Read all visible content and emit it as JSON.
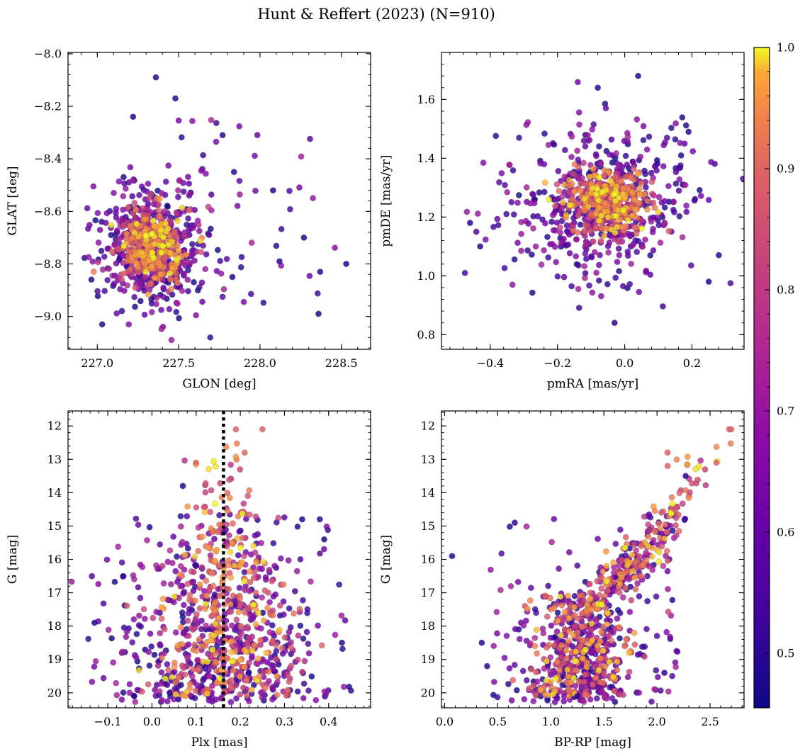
{
  "chart_data": {
    "type": "scatter",
    "title": "Hunt & Reffert (2023) (N=910)",
    "n_points": 910,
    "colorbar": {
      "colormap": "plasma",
      "range": [
        0.455,
        1.0
      ],
      "ticks": [
        0.5,
        0.6,
        0.7,
        0.8,
        0.9,
        1.0
      ],
      "tick_labels": [
        "0.5",
        "0.6",
        "0.7",
        "0.8",
        "0.9",
        "1.0"
      ]
    },
    "panels": [
      {
        "id": "glon-glat",
        "xlabel": "GLON [deg]",
        "ylabel": "GLAT [deg]",
        "xlim": [
          226.82,
          228.68
        ],
        "ylim": [
          -9.125,
          -7.995
        ],
        "y_inverted": false,
        "xticks": [
          227.0,
          227.5,
          228.0,
          228.5
        ],
        "xtick_labels": [
          "227.0",
          "227.5",
          "228.0",
          "228.5"
        ],
        "yticks": [
          -9.0,
          -8.8,
          -8.6,
          -8.4,
          -8.2,
          -8.0
        ],
        "ytick_labels": [
          "−9.0",
          "−8.8",
          "−8.6",
          "−8.4",
          "−8.2",
          "−8.0"
        ],
        "core": {
          "center": [
            227.33,
            -8.73
          ],
          "spread": [
            0.13,
            0.09
          ]
        },
        "sample_outliers": [
          [
            227.36,
            -8.09
          ],
          [
            227.48,
            -8.17
          ],
          [
            227.22,
            -8.24
          ],
          [
            227.77,
            -8.31
          ],
          [
            227.84,
            -8.45
          ],
          [
            228.08,
            -8.52
          ],
          [
            228.37,
            -8.83
          ],
          [
            228.53,
            -8.8
          ],
          [
            227.83,
            -8.85
          ],
          [
            228.36,
            -8.99
          ],
          [
            227.03,
            -9.03
          ],
          [
            228.27,
            -8.7
          ],
          [
            228.12,
            -8.79
          ]
        ]
      },
      {
        "id": "pmra-pmde",
        "xlabel": "pmRA [mas/yr]",
        "ylabel": "pmDE [mas/yr]",
        "xlim": [
          -0.545,
          0.355
        ],
        "ylim": [
          0.75,
          1.76
        ],
        "y_inverted": false,
        "xticks": [
          -0.4,
          -0.2,
          0.0,
          0.2
        ],
        "xtick_labels": [
          "−0.4",
          "−0.2",
          "0.0",
          "0.2"
        ],
        "yticks": [
          0.8,
          1.0,
          1.2,
          1.4,
          1.6
        ],
        "ytick_labels": [
          "0.8",
          "1.0",
          "1.2",
          "1.4",
          "1.6"
        ],
        "core": {
          "center": [
            -0.05,
            1.25
          ],
          "spread": [
            0.07,
            0.06
          ]
        },
        "sample_outliers": [
          [
            -0.46,
            1.18
          ],
          [
            -0.43,
            1.1
          ],
          [
            0.04,
            1.68
          ],
          [
            -0.03,
            0.84
          ],
          [
            0.28,
            1.07
          ],
          [
            0.25,
            0.98
          ],
          [
            -0.08,
            1.64
          ],
          [
            0.19,
            1.49
          ]
        ]
      },
      {
        "id": "plx-g",
        "xlabel": "Plx [mas]",
        "ylabel": "G [mag]",
        "xlim": [
          -0.19,
          0.495
        ],
        "ylim": [
          20.45,
          11.55
        ],
        "y_inverted": true,
        "xticks": [
          -0.1,
          0.0,
          0.1,
          0.2,
          0.3,
          0.4
        ],
        "xtick_labels": [
          "−0.1",
          "0.0",
          "0.1",
          "0.2",
          "0.3",
          "0.4"
        ],
        "yticks": [
          12,
          13,
          14,
          15,
          16,
          17,
          18,
          19,
          20
        ],
        "ytick_labels": [
          "12",
          "13",
          "14",
          "15",
          "16",
          "17",
          "18",
          "19",
          "20"
        ],
        "reference_line": {
          "axis": "x",
          "value": 0.162,
          "style": "dotted",
          "color": "#000000"
        },
        "sample_outliers": [
          [
            0.19,
            12.1
          ],
          [
            0.25,
            12.1
          ],
          [
            0.21,
            12.8
          ],
          [
            0.1,
            13.1
          ],
          [
            0.07,
            13.8
          ],
          [
            0.34,
            14.8
          ],
          [
            0.38,
            14.8
          ],
          [
            0.39,
            15.4
          ],
          [
            -0.13,
            17.9
          ],
          [
            0.43,
            18.5
          ],
          [
            0.06,
            20.2
          ],
          [
            0.04,
            20.0
          ],
          [
            -0.04,
            20.1
          ]
        ]
      },
      {
        "id": "bprp-g",
        "xlabel": "BP-RP [mag]",
        "ylabel": "G [mag]",
        "xlim": [
          -0.03,
          2.82
        ],
        "ylim": [
          20.45,
          11.55
        ],
        "y_inverted": true,
        "xticks": [
          0.0,
          0.5,
          1.0,
          1.5,
          2.0,
          2.5
        ],
        "xtick_labels": [
          "0.0",
          "0.5",
          "1.0",
          "1.5",
          "2.0",
          "2.5"
        ],
        "yticks": [
          12,
          13,
          14,
          15,
          16,
          17,
          18,
          19,
          20
        ],
        "ytick_labels": [
          "12",
          "13",
          "14",
          "15",
          "16",
          "17",
          "18",
          "19",
          "20"
        ],
        "sample_outliers": [
          [
            0.07,
            15.9
          ],
          [
            0.4,
            19.2
          ],
          [
            0.66,
            14.9
          ],
          [
            2.68,
            12.1
          ],
          [
            2.7,
            12.1
          ],
          [
            2.56,
            13.1
          ],
          [
            2.27,
            13.5
          ],
          [
            2.1,
            12.8
          ],
          [
            2.1,
            13.2
          ],
          [
            2.07,
            19.4
          ],
          [
            0.35,
            18.5
          ],
          [
            1.25,
            20.1
          ]
        ]
      }
    ]
  }
}
